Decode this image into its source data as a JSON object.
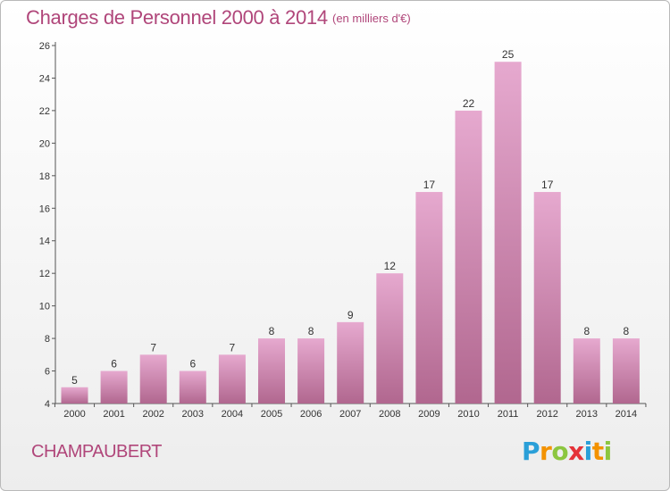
{
  "header": {
    "title": "Charges de Personnel 2000 à 2014",
    "subtitle": "(en milliers d'€)"
  },
  "footer": {
    "commune": "CHAMPAUBERT",
    "logo": {
      "text": "Proxiti",
      "letters": [
        {
          "char": "P",
          "color": "#2a9fd8"
        },
        {
          "char": "r",
          "color": "#f39200"
        },
        {
          "char": "o",
          "color": "#8cc63f"
        },
        {
          "char": "x",
          "color": "#e53238"
        },
        {
          "char": "i",
          "color": "#2a9fd8"
        },
        {
          "char": "t",
          "color": "#f39200"
        },
        {
          "char": "i",
          "color": "#8cc63f"
        }
      ]
    }
  },
  "colors": {
    "accent": "#b0467a",
    "bar_top": "#e6a9cf",
    "bar_bottom": "#b1678f"
  },
  "chart_data": {
    "type": "bar",
    "title": "Charges de Personnel 2000 à 2014",
    "subtitle": "(en milliers d'€)",
    "categories": [
      "2000",
      "2001",
      "2002",
      "2003",
      "2004",
      "2005",
      "2006",
      "2007",
      "2008",
      "2009",
      "2010",
      "2011",
      "2012",
      "2013",
      "2014"
    ],
    "values": [
      5,
      6,
      7,
      6,
      7,
      8,
      8,
      9,
      12,
      17,
      22,
      25,
      17,
      8,
      8
    ],
    "ylim": [
      4,
      26
    ],
    "yticks": [
      4,
      6,
      8,
      10,
      12,
      14,
      16,
      18,
      20,
      22,
      24,
      26
    ],
    "xlabel": "",
    "ylabel": "",
    "grid": false,
    "data_labels": true
  }
}
